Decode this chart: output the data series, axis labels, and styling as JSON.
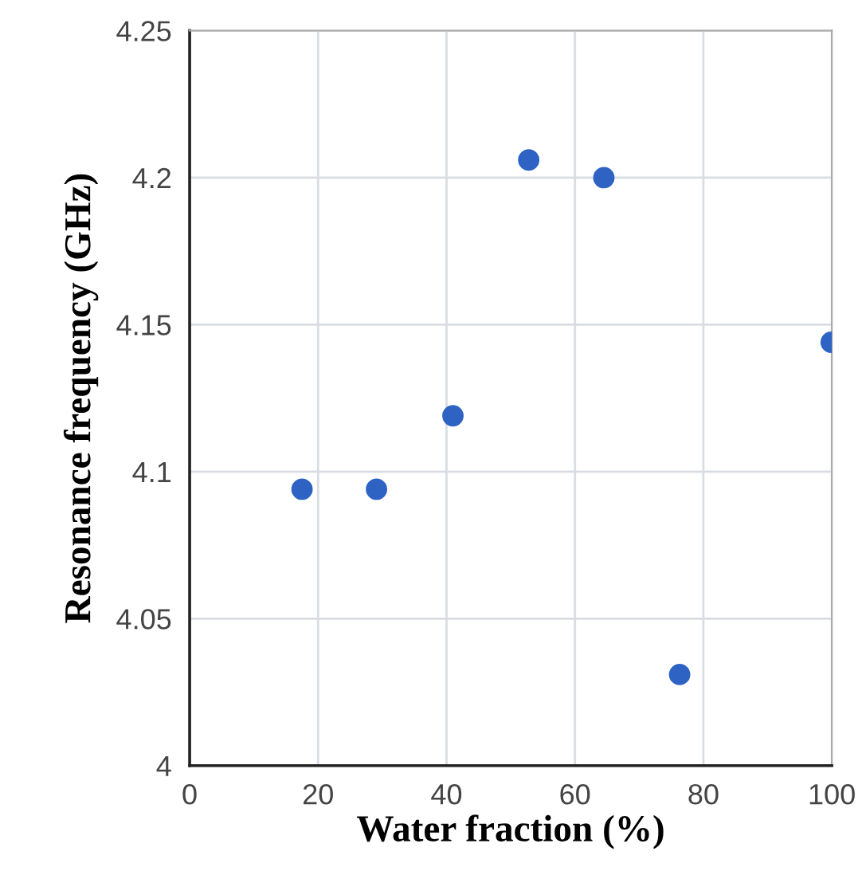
{
  "chart_data": {
    "type": "scatter",
    "xlabel": "Water fraction (%)",
    "ylabel": "Resonance frequency (GHz)",
    "x": [
      17.5,
      29.1,
      41.0,
      52.8,
      64.5,
      76.3,
      99.9
    ],
    "series": [
      {
        "color": "#2e63c4",
        "values": [
          4.094,
          4.094,
          4.119,
          4.206,
          4.2,
          4.031,
          4.144
        ]
      }
    ],
    "xlim": [
      0,
      100
    ],
    "xticks": [
      0,
      20,
      40,
      60,
      80,
      100
    ],
    "ylim": [
      4,
      4.25
    ],
    "yticks": [
      {
        "value": 4,
        "label": "4"
      },
      {
        "value": 4.05,
        "label": "4.05"
      },
      {
        "value": 4.1,
        "label": "4.1"
      },
      {
        "value": 4.15,
        "label": "4.15"
      },
      {
        "value": 4.2,
        "label": "4.2"
      },
      {
        "value": 4.25,
        "label": "4.25"
      }
    ],
    "grid": true,
    "marker": "circle"
  }
}
